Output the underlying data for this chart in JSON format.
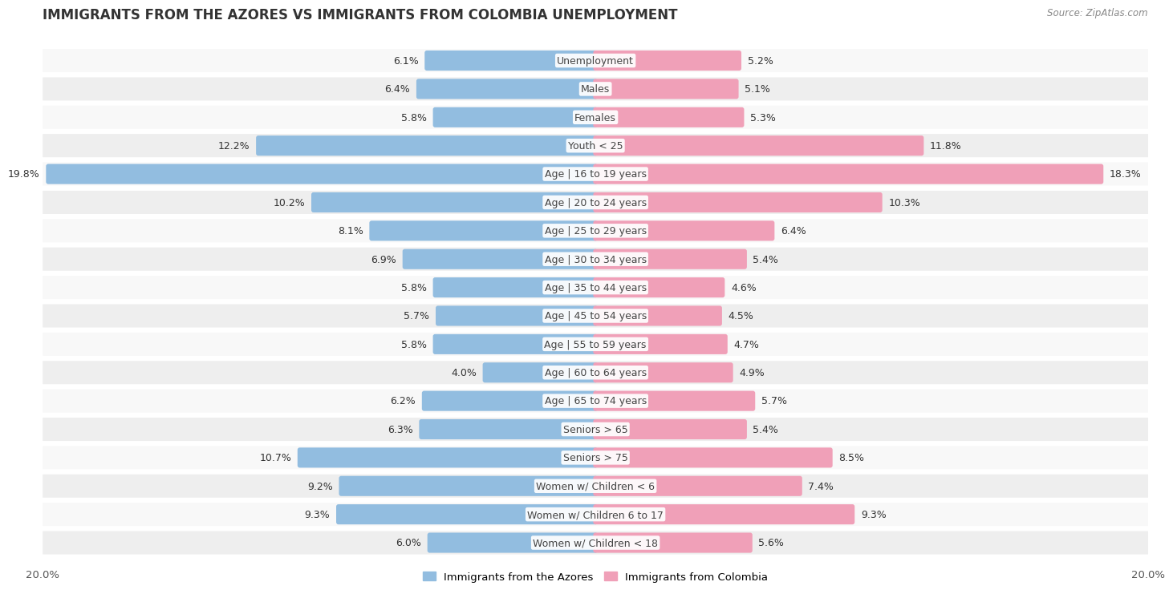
{
  "title": "IMMIGRANTS FROM THE AZORES VS IMMIGRANTS FROM COLOMBIA UNEMPLOYMENT",
  "source": "Source: ZipAtlas.com",
  "categories": [
    "Unemployment",
    "Males",
    "Females",
    "Youth < 25",
    "Age | 16 to 19 years",
    "Age | 20 to 24 years",
    "Age | 25 to 29 years",
    "Age | 30 to 34 years",
    "Age | 35 to 44 years",
    "Age | 45 to 54 years",
    "Age | 55 to 59 years",
    "Age | 60 to 64 years",
    "Age | 65 to 74 years",
    "Seniors > 65",
    "Seniors > 75",
    "Women w/ Children < 6",
    "Women w/ Children 6 to 17",
    "Women w/ Children < 18"
  ],
  "azores_values": [
    6.1,
    6.4,
    5.8,
    12.2,
    19.8,
    10.2,
    8.1,
    6.9,
    5.8,
    5.7,
    5.8,
    4.0,
    6.2,
    6.3,
    10.7,
    9.2,
    9.3,
    6.0
  ],
  "colombia_values": [
    5.2,
    5.1,
    5.3,
    11.8,
    18.3,
    10.3,
    6.4,
    5.4,
    4.6,
    4.5,
    4.7,
    4.9,
    5.7,
    5.4,
    8.5,
    7.4,
    9.3,
    5.6
  ],
  "azores_color": "#92bde0",
  "colombia_color": "#f0a0b8",
  "bg_color": "#ffffff",
  "row_color_light": "#f8f8f8",
  "row_color_dark": "#eeeeee",
  "axis_limit": 20.0,
  "label_fontsize": 9.0,
  "title_fontsize": 12,
  "value_fontsize": 9.0,
  "legend_label_azores": "Immigrants from the Azores",
  "legend_label_colombia": "Immigrants from Colombia"
}
